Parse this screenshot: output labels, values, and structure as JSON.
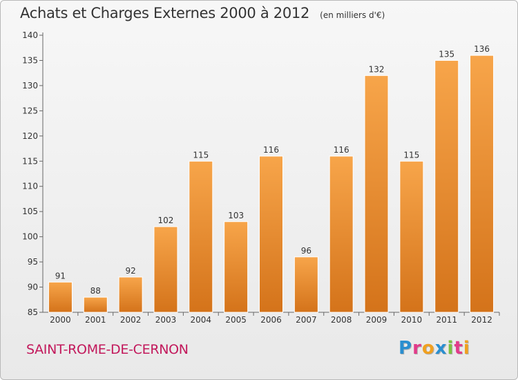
{
  "header": {
    "title": "Achats et Charges Externes 2000 à 2012",
    "unit": "(en milliers d'€)"
  },
  "footer": {
    "commune": "SAINT-ROME-DE-CERNON",
    "logo_text": "Proxiti",
    "logo_letters": [
      {
        "char": "P",
        "color": "#2a8fd0"
      },
      {
        "char": "r",
        "color": "#e23b8a"
      },
      {
        "char": "o",
        "color": "#f0a020"
      },
      {
        "char": "x",
        "color": "#2a8fd0"
      },
      {
        "char": "i",
        "color": "#7cc242"
      },
      {
        "char": "t",
        "color": "#e23b8a"
      },
      {
        "char": "i",
        "color": "#f0a020"
      }
    ]
  },
  "colors": {
    "bar_top": "#f7a54a",
    "bar_bottom": "#d4731a",
    "axis": "#666666",
    "grid": "#cccccc",
    "commune": "#c2185b"
  },
  "chart_data": {
    "type": "bar",
    "title": "Achats et Charges Externes 2000 à 2012",
    "subtitle": "(en milliers d'€)",
    "xlabel": "",
    "ylabel": "",
    "categories": [
      "2000",
      "2001",
      "2002",
      "2003",
      "2004",
      "2005",
      "2006",
      "2007",
      "2008",
      "2009",
      "2010",
      "2011",
      "2012"
    ],
    "values": [
      91,
      88,
      92,
      102,
      115,
      103,
      116,
      96,
      116,
      132,
      115,
      135,
      136
    ],
    "ylim": [
      85,
      140
    ],
    "yticks": [
      85,
      90,
      95,
      100,
      105,
      110,
      115,
      120,
      125,
      130,
      135,
      140
    ],
    "grid": false,
    "data_labels": true
  }
}
